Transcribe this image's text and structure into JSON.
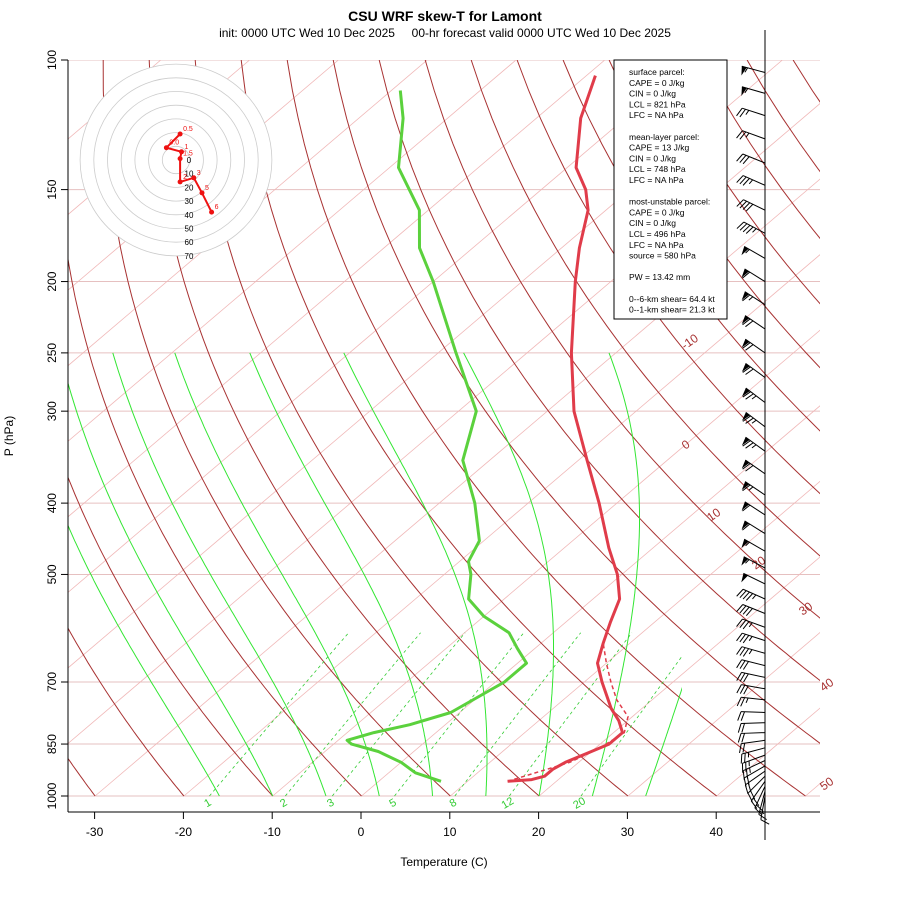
{
  "chart_data": {
    "type": "skew-t",
    "title": "CSU WRF skew-T for Lamont",
    "subtitle": "init: 0000 UTC Wed 10 Dec 2025     00-hr forecast valid 0000 UTC Wed 10 Dec 2025",
    "xlabel": "Temperature (C)",
    "ylabel": "P (hPa)",
    "x_ticks": [
      "-30",
      "-20",
      "-10",
      "0",
      "10",
      "20",
      "30",
      "40"
    ],
    "y_ticks": [
      "100",
      "150",
      "200",
      "250",
      "300",
      "400",
      "500",
      "700",
      "850",
      "1000"
    ],
    "dry_adiabat_labels": [
      "-10",
      "0",
      "10",
      "20",
      "30",
      "40",
      "50"
    ],
    "mixing_ratio_labels": [
      "1",
      "2",
      "3",
      "5",
      "8",
      "12",
      "20"
    ],
    "hodograph": {
      "ring_labels": [
        "0",
        "10",
        "20",
        "30",
        "40",
        "50",
        "60",
        "70"
      ],
      "points": [
        {
          "label": "0.5",
          "u": 3,
          "v": 19
        },
        {
          "label": "0.0",
          "u": -7,
          "v": 9
        },
        {
          "label": "1",
          "u": 4,
          "v": 6
        },
        {
          "label": "1.5",
          "u": 3,
          "v": 1
        },
        {
          "label": "2",
          "u": 3,
          "v": -16
        },
        {
          "label": "3",
          "u": 13,
          "v": -13
        },
        {
          "label": "5",
          "u": 19,
          "v": -24
        },
        {
          "label": "6",
          "u": 26,
          "v": -38
        }
      ]
    },
    "info_box": [
      "surface parcel:",
      "CAPE = 0 J/kg",
      "CIN = 0 J/kg",
      "LCL = 821 hPa",
      "LFC = NA hPa",
      "",
      "mean-layer parcel:",
      "CAPE = 13 J/kg",
      "CIN = 0 J/kg",
      "LCL = 748 hPa",
      "LFC = NA hPa",
      "",
      "most-unstable parcel:",
      "CAPE = 0 J/kg",
      "CIN = 0 J/kg",
      "LCL = 496 hPa",
      "LFC = NA hPa",
      "source = 580 hPa",
      "",
      "PW =  13.42 mm",
      "",
      "0--6-km shear= 64.4 kt",
      "0--1-km shear= 21.3 kt"
    ],
    "temperature_profile": [
      {
        "p": 955,
        "t": 14.5
      },
      {
        "p": 950,
        "t": 17
      },
      {
        "p": 940,
        "t": 18
      },
      {
        "p": 920,
        "t": 18
      },
      {
        "p": 900,
        "t": 18.5
      },
      {
        "p": 870,
        "t": 20
      },
      {
        "p": 850,
        "t": 21
      },
      {
        "p": 820,
        "t": 21
      },
      {
        "p": 790,
        "t": 19
      },
      {
        "p": 760,
        "t": 16.5
      },
      {
        "p": 700,
        "t": 12
      },
      {
        "p": 660,
        "t": 9
      },
      {
        "p": 620,
        "t": 7
      },
      {
        "p": 580,
        "t": 5
      },
      {
        "p": 540,
        "t": 3
      },
      {
        "p": 500,
        "t": -0.5
      },
      {
        "p": 460,
        "t": -5
      },
      {
        "p": 400,
        "t": -12
      },
      {
        "p": 350,
        "t": -19
      },
      {
        "p": 300,
        "t": -27
      },
      {
        "p": 250,
        "t": -35
      },
      {
        "p": 200,
        "t": -44
      },
      {
        "p": 180,
        "t": -48
      },
      {
        "p": 160,
        "t": -52
      },
      {
        "p": 150,
        "t": -55
      },
      {
        "p": 140,
        "t": -59
      },
      {
        "p": 120,
        "t": -65
      },
      {
        "p": 105,
        "t": -69
      }
    ],
    "parcel_trace": [
      {
        "p": 955,
        "t": 14.5
      },
      {
        "p": 900,
        "t": 19
      },
      {
        "p": 860,
        "t": 20.5
      },
      {
        "p": 820,
        "t": 21.2
      },
      {
        "p": 780,
        "t": 19.5
      },
      {
        "p": 740,
        "t": 16
      },
      {
        "p": 700,
        "t": 13
      },
      {
        "p": 660,
        "t": 10
      },
      {
        "p": 620,
        "t": 7
      }
    ],
    "dewpoint_profile": [
      {
        "p": 955,
        "t": 7
      },
      {
        "p": 930,
        "t": 3
      },
      {
        "p": 900,
        "t": 0
      },
      {
        "p": 870,
        "t": -4
      },
      {
        "p": 850,
        "t": -8
      },
      {
        "p": 840,
        "t": -9
      },
      {
        "p": 820,
        "t": -7
      },
      {
        "p": 800,
        "t": -4
      },
      {
        "p": 770,
        "t": -1
      },
      {
        "p": 700,
        "t": 1
      },
      {
        "p": 660,
        "t": 1
      },
      {
        "p": 630,
        "t": -2
      },
      {
        "p": 600,
        "t": -5
      },
      {
        "p": 570,
        "t": -10
      },
      {
        "p": 540,
        "t": -14
      },
      {
        "p": 500,
        "t": -17
      },
      {
        "p": 480,
        "t": -19
      },
      {
        "p": 450,
        "t": -20.5
      },
      {
        "p": 400,
        "t": -26
      },
      {
        "p": 350,
        "t": -33
      },
      {
        "p": 300,
        "t": -38
      },
      {
        "p": 250,
        "t": -48
      },
      {
        "p": 200,
        "t": -60
      },
      {
        "p": 180,
        "t": -66
      },
      {
        "p": 160,
        "t": -71
      },
      {
        "p": 140,
        "t": -79
      },
      {
        "p": 120,
        "t": -85
      },
      {
        "p": 110,
        "t": -89
      }
    ],
    "wind_profile": [
      {
        "p": 1000,
        "spd": 10,
        "dir": 190
      },
      {
        "p": 985,
        "spd": 15,
        "dir": 195
      },
      {
        "p": 970,
        "spd": 20,
        "dir": 205
      },
      {
        "p": 955,
        "spd": 20,
        "dir": 215
      },
      {
        "p": 940,
        "spd": 20,
        "dir": 225
      },
      {
        "p": 925,
        "spd": 20,
        "dir": 235
      },
      {
        "p": 910,
        "spd": 20,
        "dir": 240
      },
      {
        "p": 895,
        "spd": 25,
        "dir": 245
      },
      {
        "p": 880,
        "spd": 25,
        "dir": 250
      },
      {
        "p": 860,
        "spd": 25,
        "dir": 255
      },
      {
        "p": 840,
        "spd": 20,
        "dir": 262
      },
      {
        "p": 820,
        "spd": 20,
        "dir": 268
      },
      {
        "p": 795,
        "spd": 20,
        "dir": 268
      },
      {
        "p": 770,
        "spd": 20,
        "dir": 272
      },
      {
        "p": 740,
        "spd": 25,
        "dir": 276
      },
      {
        "p": 715,
        "spd": 30,
        "dir": 280
      },
      {
        "p": 690,
        "spd": 30,
        "dir": 282
      },
      {
        "p": 665,
        "spd": 30,
        "dir": 284
      },
      {
        "p": 640,
        "spd": 35,
        "dir": 286
      },
      {
        "p": 615,
        "spd": 35,
        "dir": 288
      },
      {
        "p": 590,
        "spd": 35,
        "dir": 290
      },
      {
        "p": 565,
        "spd": 40,
        "dir": 292
      },
      {
        "p": 540,
        "spd": 45,
        "dir": 294
      },
      {
        "p": 515,
        "spd": 50,
        "dir": 296
      },
      {
        "p": 490,
        "spd": 55,
        "dir": 298
      },
      {
        "p": 465,
        "spd": 55,
        "dir": 300
      },
      {
        "p": 440,
        "spd": 60,
        "dir": 302
      },
      {
        "p": 415,
        "spd": 60,
        "dir": 303
      },
      {
        "p": 390,
        "spd": 65,
        "dir": 304
      },
      {
        "p": 365,
        "spd": 70,
        "dir": 305
      },
      {
        "p": 340,
        "spd": 75,
        "dir": 306
      },
      {
        "p": 315,
        "spd": 75,
        "dir": 307
      },
      {
        "p": 292,
        "spd": 75,
        "dir": 307
      },
      {
        "p": 270,
        "spd": 70,
        "dir": 306
      },
      {
        "p": 250,
        "spd": 70,
        "dir": 305
      },
      {
        "p": 232,
        "spd": 70,
        "dir": 304
      },
      {
        "p": 215,
        "spd": 65,
        "dir": 303
      },
      {
        "p": 200,
        "spd": 60,
        "dir": 302
      },
      {
        "p": 186,
        "spd": 55,
        "dir": 300
      },
      {
        "p": 172,
        "spd": 45,
        "dir": 298
      },
      {
        "p": 160,
        "spd": 40,
        "dir": 296
      },
      {
        "p": 148,
        "spd": 35,
        "dir": 294
      },
      {
        "p": 138,
        "spd": 30,
        "dir": 292
      },
      {
        "p": 128,
        "spd": 25,
        "dir": 290
      },
      {
        "p": 119,
        "spd": 25,
        "dir": 288
      },
      {
        "p": 111,
        "spd": 55,
        "dir": 286
      },
      {
        "p": 104,
        "spd": 55,
        "dir": 285
      }
    ],
    "colors": {
      "temperature": "#e03c4a",
      "dewpoint": "#5bd13d",
      "dry_adiabat": "#a83232",
      "moist_adiabat": "#33e633",
      "mixing_ratio": "#33cc33",
      "isotherm": "#f0b8b8",
      "isobar": "#e6c0c0",
      "hodograph": "#ee1111"
    }
  }
}
